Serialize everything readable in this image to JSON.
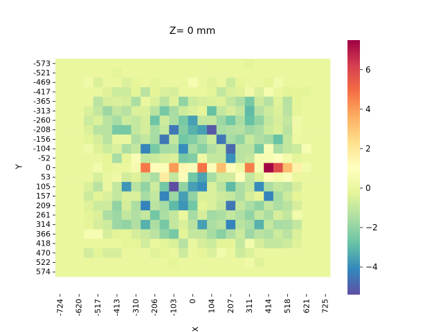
{
  "chart_data": {
    "type": "heatmap",
    "title": "Z= 0 mm",
    "xlabel": "X",
    "ylabel": "Y",
    "x_tick_labels": [
      "-724",
      "-620",
      "-517",
      "-413",
      "-310",
      "-206",
      "-103",
      "0",
      "104",
      "207",
      "311",
      "414",
      "518",
      "621",
      "725"
    ],
    "y_tick_labels": [
      "-573",
      "-521",
      "-469",
      "-417",
      "-365",
      "-313",
      "-260",
      "-208",
      "-156",
      "-104",
      "-52",
      "0",
      "53",
      "105",
      "157",
      "209",
      "261",
      "314",
      "366",
      "418",
      "470",
      "522",
      "574"
    ],
    "colorbar": {
      "vmin": -5.4,
      "vmax": 7.5,
      "ticks": [
        -4,
        -2,
        0,
        2,
        4,
        6
      ],
      "colormap": "Spectral_r"
    },
    "rows": 23,
    "cols": 29,
    "grid": false,
    "legend": "colorbar-right",
    "z": [
      [
        0,
        0,
        0,
        0,
        0,
        0,
        0,
        0,
        0,
        0,
        0,
        0,
        0,
        0,
        0,
        0,
        0,
        0,
        0,
        0,
        -0.3,
        0,
        0,
        0,
        0,
        0,
        0,
        0,
        0
      ],
      [
        0,
        0,
        0,
        0,
        0,
        0,
        -0.3,
        0,
        0,
        0,
        0,
        0,
        0,
        0,
        0,
        0,
        0,
        0,
        0,
        0,
        0,
        0,
        0,
        0,
        0,
        0,
        0,
        0,
        0
      ],
      [
        0,
        0,
        0,
        0.3,
        -0.5,
        0,
        0,
        -0.5,
        -0.2,
        0,
        -0.3,
        0,
        0,
        0,
        0.6,
        0,
        -0.4,
        0,
        -0.8,
        -0.2,
        0,
        0,
        -0.2,
        0.4,
        0,
        0,
        0,
        0,
        0
      ],
      [
        0,
        0,
        0,
        0,
        0,
        -0.4,
        -0.8,
        -0.8,
        -0.3,
        -1.2,
        -0.2,
        -0.5,
        -0.6,
        0,
        0,
        0,
        -0.3,
        -1.0,
        -0.5,
        -0.4,
        0.3,
        -0.5,
        0.5,
        0,
        -0.3,
        -0.2,
        -0.3,
        0,
        0
      ],
      [
        0,
        0,
        0,
        0,
        -1.2,
        -0.6,
        -0.5,
        -0.6,
        -1.5,
        0,
        -0.5,
        -1.2,
        -0.4,
        -2.0,
        -0.8,
        -0.6,
        -0.5,
        -0.4,
        -1.0,
        -1.5,
        -2.5,
        -0.8,
        -1.3,
        -0.4,
        -1.3,
        -0.2,
        0,
        0,
        0
      ],
      [
        0,
        0,
        0,
        -0.5,
        -1.0,
        -1.8,
        -1.0,
        -1.3,
        -0.5,
        -0.5,
        -1.2,
        -2.5,
        -1.6,
        -0.8,
        -0.5,
        -0.2,
        -2.8,
        -1.0,
        -0.6,
        -1.0,
        -3.0,
        -1.3,
        -0.8,
        -0.5,
        -1.2,
        -0.2,
        0,
        0,
        0
      ],
      [
        0,
        0,
        0,
        -0.8,
        -0.5,
        -1.2,
        -1.6,
        -0.8,
        -1.0,
        -0.6,
        -2.7,
        -0.8,
        -1.5,
        -2.5,
        -3.6,
        -1.0,
        -1.0,
        -1.8,
        -2.6,
        -1.5,
        -2.8,
        -2.0,
        -1.0,
        -0.6,
        -1.0,
        0.3,
        0,
        0,
        0
      ],
      [
        0,
        0,
        0,
        -0.5,
        -1.2,
        -1.2,
        -2.5,
        -2.5,
        -1.0,
        -0.6,
        -1.6,
        -1.0,
        -4.5,
        -2.3,
        -3.2,
        -3.6,
        -5.2,
        -1.6,
        -1.4,
        -1.3,
        -1.8,
        -1.5,
        -0.8,
        -0.5,
        -1.2,
        0.2,
        0,
        0,
        0
      ],
      [
        0,
        0,
        0,
        -0.3,
        -0.6,
        -1.2,
        0,
        0,
        -1.4,
        -1.0,
        -1.6,
        -4.5,
        -1.0,
        -2.6,
        -2.3,
        -1.6,
        -0.8,
        -4.5,
        -1.6,
        -2.0,
        -0.9,
        -1.4,
        -1.7,
        -2.8,
        -1.0,
        0.1,
        0,
        0,
        0
      ],
      [
        0,
        0,
        0,
        0.3,
        -0.4,
        -0.8,
        -0.5,
        -1.5,
        -1.0,
        -4.2,
        -2.5,
        -1.6,
        -1.5,
        -4.0,
        -1.6,
        -2.2,
        -1.4,
        -1.0,
        -4.8,
        -1.2,
        -1.2,
        -2.5,
        0.7,
        -1.5,
        -1.0,
        -0.8,
        0.6,
        0,
        0
      ],
      [
        0,
        0,
        0,
        0,
        0,
        -0.2,
        -1.6,
        -0.2,
        0.7,
        -1.0,
        -0.9,
        -0.6,
        -0.5,
        -2.5,
        -2.3,
        0.2,
        -1.0,
        -1.0,
        -3.9,
        -1.2,
        -1.0,
        0.6,
        0.6,
        1.0,
        0.4,
        -0.3,
        0,
        0,
        0
      ],
      [
        0,
        0,
        0,
        0,
        0.4,
        -0.2,
        0,
        0,
        0.5,
        4.7,
        1.2,
        0.8,
        4.0,
        1.4,
        0.8,
        4.8,
        0.8,
        3.2,
        1.2,
        0.3,
        4.6,
        0.6,
        7.4,
        5.8,
        3.2,
        1.6,
        0.4,
        0,
        0
      ],
      [
        0,
        0,
        0,
        0,
        -0.6,
        0,
        0.2,
        -0.7,
        -0.4,
        -1.0,
        -1.5,
        1.8,
        -1.0,
        0.8,
        -2.6,
        -3.5,
        -1.6,
        -0.8,
        -0.7,
        0.9,
        -1.0,
        -0.4,
        1.2,
        0.5,
        0.8,
        0,
        0,
        0,
        0
      ],
      [
        0,
        0,
        0,
        -0.5,
        -1.2,
        0,
        -1.0,
        -3.8,
        -1.2,
        -2.0,
        -0.8,
        -2.6,
        -5.4,
        -2.0,
        -3.6,
        -4.0,
        -0.5,
        -1.2,
        -3.0,
        -1.5,
        -1.0,
        -4.0,
        -1.5,
        -1.0,
        -1.2,
        -0.6,
        0,
        0,
        0
      ],
      [
        0,
        0,
        0,
        -0.8,
        -0.3,
        -0.5,
        -1.0,
        -0.5,
        -0.5,
        -1.6,
        -1.0,
        -4.2,
        -1.8,
        -3.6,
        -2.0,
        -0.5,
        -0.5,
        -0.8,
        -1.0,
        -1.5,
        -0.6,
        -0.2,
        -4.2,
        -1.6,
        -0.8,
        -0.2,
        0,
        0,
        0
      ],
      [
        0,
        0,
        0,
        -0.4,
        -0.8,
        -0.8,
        -2.0,
        -0.6,
        -1.5,
        -4.2,
        -1.2,
        -1.6,
        -3.0,
        -3.8,
        -2.6,
        -0.3,
        -0.5,
        -1.0,
        -4.5,
        -1.0,
        -1.5,
        -2.0,
        -1.0,
        -1.5,
        -1.2,
        -0.6,
        0,
        0,
        0
      ],
      [
        0,
        0,
        0,
        -0.3,
        -0.5,
        -1.5,
        -1.8,
        -1.0,
        -1.4,
        -1.0,
        -2.6,
        -1.5,
        -1.0,
        0,
        -1.6,
        -0.6,
        -1.7,
        -1.5,
        -1.0,
        -1.4,
        -2.0,
        -1.0,
        -1.5,
        -0.6,
        -1.0,
        0.4,
        0,
        0,
        0
      ],
      [
        0,
        0,
        0,
        -0.2,
        -0.6,
        -0.8,
        -1.8,
        -2.0,
        -1.4,
        -3.2,
        -1.5,
        -2.5,
        -1.0,
        -0.5,
        -1.2,
        -3.6,
        -1.5,
        -1.2,
        -4.2,
        -1.2,
        -1.5,
        -3.2,
        -1.0,
        -1.6,
        -1.5,
        -1.0,
        0,
        0,
        0
      ],
      [
        0,
        0,
        0,
        0.6,
        0.6,
        -0.6,
        -0.3,
        -0.2,
        -0.6,
        -0.9,
        -1.2,
        -2.0,
        -2.5,
        -0.3,
        -1.0,
        -1.0,
        -1.6,
        -2.2,
        -1.4,
        -0.8,
        -1.8,
        -1.2,
        -1.4,
        -0.8,
        -1.2,
        -0.5,
        0,
        0,
        0
      ],
      [
        0,
        0,
        0,
        0,
        0,
        0,
        0,
        -0.2,
        -0.2,
        -0.7,
        0,
        -0.3,
        -0.5,
        -1.3,
        0,
        -0.6,
        -0.8,
        -0.3,
        -0.2,
        -1.0,
        0.4,
        -0.6,
        -1.0,
        -1.0,
        -0.8,
        -0.4,
        0,
        0,
        0
      ],
      [
        0,
        0,
        0,
        -0.7,
        -0.3,
        -0.6,
        -0.6,
        0,
        0,
        0,
        -0.4,
        -0.2,
        0,
        -0.8,
        0,
        -0.2,
        -0.5,
        0.4,
        0,
        -0.8,
        -0.5,
        0,
        0,
        0,
        0,
        0,
        0,
        0,
        0
      ],
      [
        0,
        0,
        0,
        0,
        0,
        0,
        0,
        0,
        0,
        0,
        0,
        0,
        -0.2,
        0,
        0,
        0,
        0,
        0,
        0,
        0,
        0.3,
        -0.4,
        0,
        0,
        0,
        0,
        0,
        0,
        0
      ],
      [
        0,
        0,
        0,
        0,
        0,
        0,
        0,
        0,
        0,
        0,
        0,
        0,
        0,
        0,
        0,
        0,
        0,
        0,
        0,
        0,
        0,
        0,
        0,
        0,
        0,
        0,
        0,
        0,
        0
      ]
    ]
  }
}
